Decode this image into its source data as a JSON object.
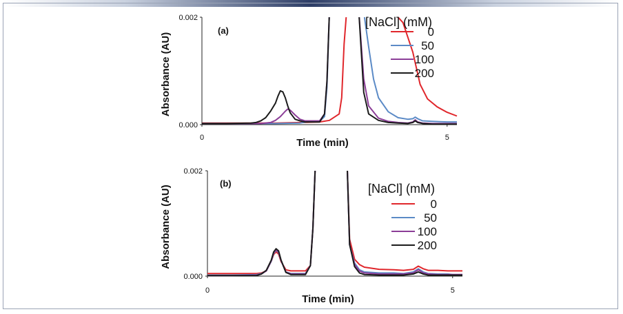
{
  "chart_data": [
    {
      "type": "line",
      "panel_label": "(a)",
      "xlabel": "Time (min)",
      "ylabel": "Absorbance (AU)",
      "xlim": [
        0,
        5.2
      ],
      "ylim": [
        0,
        0.002
      ],
      "x_ticks": [
        "0",
        "5"
      ],
      "y_ticks": [
        "0.000",
        "0.002"
      ],
      "legend_title": "[NaCl] (mM)",
      "series": [
        {
          "name": "0",
          "color": "#e0262b",
          "x": [
            0,
            0.5,
            1.0,
            1.5,
            2.0,
            2.4,
            2.6,
            2.8,
            2.85,
            2.9,
            2.95,
            3.0,
            3.05,
            3.1,
            3.15,
            3.2,
            3.3,
            3.5,
            3.7,
            3.9,
            4.1,
            4.3,
            4.45,
            4.6,
            4.8,
            5.0,
            5.2
          ],
          "y": [
            3e-05,
            3e-05,
            3e-05,
            3e-05,
            4e-05,
            5e-05,
            8e-05,
            0.0002,
            0.0005,
            0.0015,
            0.0021,
            0.0021,
            0.0021,
            0.0021,
            0.0021,
            0.0021,
            0.0021,
            0.0021,
            0.0021,
            0.0021,
            0.0019,
            0.00135,
            0.00075,
            0.00048,
            0.00033,
            0.00023,
            0.00016
          ]
        },
        {
          "name": "50",
          "color": "#5b8ac6",
          "x": [
            0,
            0.5,
            1.0,
            1.5,
            2.0,
            2.2,
            2.4,
            2.5,
            2.55,
            2.6,
            2.65,
            2.7,
            2.8,
            2.9,
            3.0,
            3.1,
            3.2,
            3.3,
            3.4,
            3.5,
            3.6,
            3.8,
            4.0,
            4.2,
            4.3,
            4.35,
            4.4,
            4.5,
            4.7,
            5.0,
            5.2
          ],
          "y": [
            2e-05,
            2e-05,
            2e-05,
            2e-05,
            3e-05,
            6e-05,
            6e-05,
            0.00015,
            0.0007,
            0.0021,
            0.0021,
            0.0021,
            0.0021,
            0.0021,
            0.0021,
            0.0021,
            0.0021,
            0.0021,
            0.00145,
            0.00085,
            0.0005,
            0.00024,
            0.00013,
            0.0001,
            0.00011,
            0.00014,
            0.00011,
            7e-05,
            6e-05,
            5e-05,
            5e-05
          ]
        },
        {
          "name": "100",
          "color": "#8b3d97",
          "x": [
            0,
            0.5,
            1.0,
            1.2,
            1.4,
            1.5,
            1.6,
            1.7,
            1.75,
            1.8,
            1.9,
            2.0,
            2.1,
            2.2,
            2.4,
            2.5,
            2.55,
            2.6,
            2.65,
            2.7,
            2.8,
            2.9,
            3.0,
            3.1,
            3.2,
            3.3,
            3.4,
            3.6,
            3.8,
            4.0,
            4.2,
            4.3,
            4.35,
            4.4,
            4.5,
            4.7,
            5.0,
            5.2
          ],
          "y": [
            2e-05,
            2e-05,
            2e-05,
            2e-05,
            4e-05,
            8e-05,
            0.00015,
            0.00025,
            0.00029,
            0.00027,
            0.00018,
            0.0001,
            7e-05,
            7e-05,
            7e-05,
            0.0002,
            0.0008,
            0.0021,
            0.0021,
            0.0021,
            0.0021,
            0.0021,
            0.0021,
            0.0021,
            0.0021,
            0.00085,
            0.00035,
            0.00012,
            6e-05,
            4e-05,
            3e-05,
            5e-05,
            9e-05,
            5e-05,
            3e-05,
            2e-05,
            2e-05,
            2e-05
          ]
        },
        {
          "name": "200",
          "color": "#1b1b1b",
          "x": [
            0,
            0.5,
            1.0,
            1.1,
            1.2,
            1.3,
            1.4,
            1.5,
            1.55,
            1.6,
            1.65,
            1.7,
            1.75,
            1.8,
            1.9,
            2.0,
            2.1,
            2.2,
            2.3,
            2.4,
            2.5,
            2.55,
            2.6,
            2.65,
            2.7,
            2.8,
            2.9,
            3.0,
            3.1,
            3.2,
            3.3,
            3.4,
            3.6,
            3.8,
            4.0,
            4.2,
            4.3,
            4.35,
            4.4,
            4.5,
            4.7,
            5.0,
            5.2
          ],
          "y": [
            2e-05,
            2e-05,
            3e-05,
            4e-05,
            7e-05,
            0.00013,
            0.00025,
            0.0004,
            0.00053,
            0.00063,
            0.00061,
            0.0005,
            0.00035,
            0.00022,
            0.0001,
            7e-05,
            5e-05,
            5e-05,
            5e-05,
            5e-05,
            0.0002,
            0.0008,
            0.0021,
            0.0021,
            0.0021,
            0.0021,
            0.0021,
            0.0021,
            0.0021,
            0.0021,
            0.0006,
            0.0002,
            8e-05,
            4e-05,
            3e-05,
            2e-05,
            4e-05,
            7e-05,
            4e-05,
            2e-05,
            1e-05,
            1e-05,
            1e-05
          ]
        }
      ]
    },
    {
      "type": "line",
      "panel_label": "(b)",
      "xlabel": "Time (min)",
      "ylabel": "Absorbance (AU)",
      "xlim": [
        0,
        5.2
      ],
      "ylim": [
        0,
        0.002
      ],
      "x_ticks": [
        "0",
        "5"
      ],
      "y_ticks": [
        "0.000",
        "0.002"
      ],
      "legend_title": "[NaCl] (mM)",
      "series": [
        {
          "name": "0",
          "color": "#e0262b",
          "x": [
            0,
            0.5,
            1.0,
            1.1,
            1.2,
            1.3,
            1.35,
            1.4,
            1.45,
            1.5,
            1.6,
            1.7,
            1.8,
            1.9,
            2.0,
            2.1,
            2.15,
            2.2,
            2.3,
            2.5,
            2.7,
            2.8,
            2.85,
            2.9,
            3.0,
            3.1,
            3.2,
            3.5,
            3.8,
            4.0,
            4.2,
            4.3,
            4.4,
            4.5,
            4.7,
            4.9,
            5.0,
            5.1,
            5.2
          ],
          "y": [
            5e-05,
            5e-05,
            5e-05,
            6e-05,
            0.0001,
            0.00028,
            0.00041,
            0.00046,
            0.00042,
            0.00028,
            0.00012,
            0.0001,
            0.0001,
            0.0001,
            0.0001,
            0.0002,
            0.0009,
            0.0021,
            0.0021,
            0.0021,
            0.0021,
            0.0021,
            0.0021,
            0.0007,
            0.00032,
            0.00022,
            0.00017,
            0.00013,
            0.00012,
            0.00011,
            0.00013,
            0.00019,
            0.00014,
            0.00011,
            0.00011,
            0.0001,
            0.0001,
            0.0001,
            0.0001
          ]
        },
        {
          "name": "50",
          "color": "#5b8ac6",
          "x": [
            0,
            0.5,
            1.0,
            1.1,
            1.2,
            1.3,
            1.35,
            1.4,
            1.45,
            1.5,
            1.6,
            1.7,
            1.8,
            1.9,
            2.0,
            2.1,
            2.15,
            2.2,
            2.3,
            2.5,
            2.7,
            2.8,
            2.85,
            2.9,
            3.0,
            3.1,
            3.2,
            3.5,
            3.8,
            4.0,
            4.2,
            4.3,
            4.4,
            4.5,
            4.7,
            4.9,
            5.0,
            5.1,
            5.2
          ],
          "y": [
            2e-05,
            2e-05,
            3e-05,
            5e-05,
            0.0001,
            0.00028,
            0.00043,
            0.00049,
            0.00045,
            0.0003,
            8e-05,
            5e-05,
            5e-05,
            5e-05,
            5e-05,
            0.0002,
            0.0009,
            0.0021,
            0.0021,
            0.0021,
            0.0021,
            0.0021,
            0.0021,
            0.0006,
            0.00025,
            0.00012,
            8e-05,
            6e-05,
            6e-05,
            5e-05,
            8e-05,
            0.00014,
            8e-05,
            5e-05,
            4e-05,
            4e-05,
            3e-05,
            3e-05,
            3e-05
          ]
        },
        {
          "name": "100",
          "color": "#8b3d97",
          "x": [
            0,
            0.5,
            1.0,
            1.1,
            1.2,
            1.3,
            1.35,
            1.4,
            1.45,
            1.5,
            1.6,
            1.7,
            1.8,
            1.9,
            2.0,
            2.1,
            2.15,
            2.2,
            2.3,
            2.5,
            2.7,
            2.8,
            2.85,
            2.9,
            3.0,
            3.1,
            3.2,
            3.5,
            3.8,
            4.0,
            4.2,
            4.3,
            4.4,
            4.5,
            4.7,
            4.9,
            5.0,
            5.1,
            5.2
          ],
          "y": [
            1e-05,
            1e-05,
            2e-05,
            4e-05,
            0.0001,
            0.00029,
            0.00044,
            0.0005,
            0.00046,
            0.0003,
            8e-05,
            4e-05,
            4e-05,
            4e-05,
            4e-05,
            0.0002,
            0.0009,
            0.0021,
            0.0021,
            0.0021,
            0.0021,
            0.0021,
            0.0021,
            0.0006,
            0.00022,
            0.0001,
            6e-05,
            4e-05,
            4e-05,
            4e-05,
            6e-05,
            0.00012,
            6e-05,
            4e-05,
            3e-05,
            3e-05,
            3e-05,
            3e-05,
            3e-05
          ]
        },
        {
          "name": "200",
          "color": "#1b1b1b",
          "x": [
            0,
            0.5,
            1.0,
            1.1,
            1.2,
            1.3,
            1.35,
            1.4,
            1.45,
            1.5,
            1.6,
            1.7,
            1.8,
            1.9,
            2.0,
            2.1,
            2.15,
            2.2,
            2.3,
            2.5,
            2.7,
            2.8,
            2.85,
            2.9,
            3.0,
            3.1,
            3.2,
            3.5,
            3.8,
            4.0,
            4.2,
            4.3,
            4.4,
            4.5,
            4.7,
            4.9,
            5.0,
            5.1,
            5.2
          ],
          "y": [
            1e-05,
            1e-05,
            1e-05,
            4e-05,
            0.00011,
            0.0003,
            0.00046,
            0.00052,
            0.00048,
            0.00031,
            7e-05,
            3e-05,
            3e-05,
            3e-05,
            3e-05,
            0.0002,
            0.0009,
            0.0021,
            0.0021,
            0.0021,
            0.0021,
            0.0021,
            0.0021,
            0.0006,
            0.00018,
            6e-05,
            3e-05,
            2e-05,
            2e-05,
            2e-05,
            4e-05,
            8e-05,
            4e-05,
            2e-05,
            2e-05,
            2e-05,
            2e-05,
            2e-05,
            2e-05
          ]
        }
      ]
    }
  ]
}
